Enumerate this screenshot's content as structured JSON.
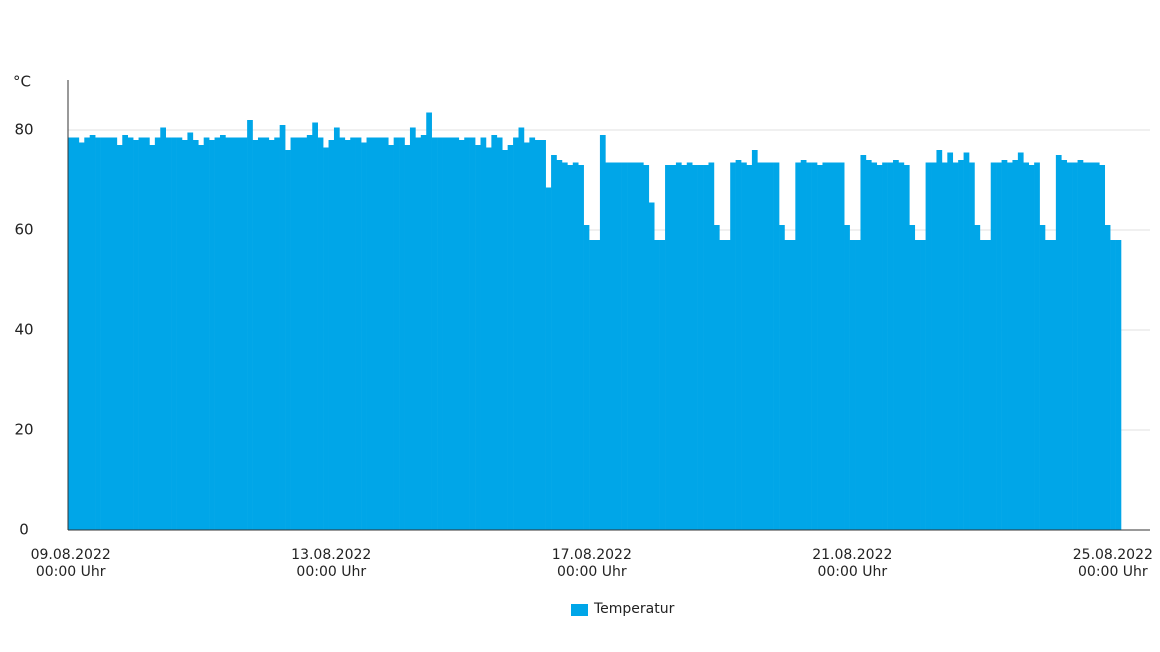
{
  "chart_data": {
    "type": "bar",
    "y_label": "°C",
    "ylim": [
      0,
      90
    ],
    "yticks": [
      0,
      20,
      40,
      60,
      80
    ],
    "grid": true,
    "categories": [
      "09.08.2022 00:00 Uhr",
      null,
      null,
      null,
      null,
      null,
      null,
      null,
      null,
      null,
      null,
      null,
      null,
      null,
      null,
      null,
      null,
      null,
      null,
      null,
      null,
      null,
      null,
      null,
      null,
      null,
      null,
      null,
      null,
      null,
      null,
      null,
      null,
      null,
      null,
      null,
      null,
      null,
      null,
      null,
      null,
      null,
      null,
      null,
      null,
      null,
      null,
      null,
      "13.08.2022 00:00 Uhr",
      null,
      null,
      null,
      null,
      null,
      null,
      null,
      null,
      null,
      null,
      null,
      null,
      null,
      null,
      null,
      null,
      null,
      null,
      null,
      null,
      null,
      null,
      null,
      null,
      null,
      null,
      null,
      null,
      null,
      null,
      null,
      null,
      null,
      null,
      null,
      null,
      null,
      null,
      null,
      null,
      null,
      null,
      null,
      null,
      null,
      null,
      null,
      "17.08.2022 00:00 Uhr",
      null,
      null,
      null,
      null,
      null,
      null,
      null,
      null,
      null,
      null,
      null,
      null,
      null,
      null,
      null,
      null,
      null,
      null,
      null,
      null,
      null,
      null,
      null,
      null,
      null,
      null,
      null,
      null,
      null,
      null,
      null,
      null,
      null,
      null,
      null,
      null,
      null,
      null,
      null,
      null,
      null,
      null,
      null,
      null,
      null,
      null,
      null,
      "21.08.2022 00:00 Uhr",
      null,
      null,
      null,
      null,
      null,
      null,
      null,
      null,
      null,
      null,
      null,
      null,
      null,
      null,
      null,
      null,
      null,
      null,
      null,
      null,
      null,
      null,
      null,
      null,
      null,
      null,
      null,
      null,
      null,
      null,
      null,
      null,
      null,
      null,
      null,
      null,
      null,
      null,
      null,
      null,
      null,
      null,
      null,
      null,
      null,
      null,
      null,
      "25.08.2022 00:00 Uhr",
      null
    ],
    "series": [
      {
        "name": "Temperatur",
        "color": "#00a6e8",
        "values": [
          78.5,
          78.5,
          77.5,
          78.5,
          79,
          78.5,
          78.5,
          78.5,
          78.5,
          77,
          79,
          78.5,
          78,
          78.5,
          78.5,
          77,
          78.5,
          80.5,
          78.5,
          78.5,
          78.5,
          78,
          79.5,
          78,
          77,
          78.5,
          78,
          78.5,
          79,
          78.5,
          78.5,
          78.5,
          78.5,
          82,
          78,
          78.5,
          78.5,
          78,
          78.5,
          81,
          76,
          78.5,
          78.5,
          78.5,
          79,
          81.5,
          78.5,
          76.5,
          78,
          80.5,
          78.5,
          78,
          78.5,
          78.5,
          77.5,
          78.5,
          78.5,
          78.5,
          78.5,
          77,
          78.5,
          78.5,
          77,
          80.5,
          78.5,
          79,
          83.5,
          78.5,
          78.5,
          78.5,
          78.5,
          78.5,
          78,
          78.5,
          78.5,
          77,
          78.5,
          76.5,
          79,
          78.5,
          76,
          77,
          78.5,
          80.5,
          77.5,
          78.5,
          78,
          78,
          68.5,
          75,
          74,
          73.5,
          73,
          73.5,
          73,
          61,
          58,
          58,
          79,
          73.5,
          73.5,
          73.5,
          73.5,
          73.5,
          73.5,
          73.5,
          73,
          65.5,
          58,
          58,
          73,
          73,
          73.5,
          73,
          73.5,
          73,
          73,
          73,
          73.5,
          61,
          58,
          58,
          73.5,
          74,
          73.5,
          73,
          76,
          73.5,
          73.5,
          73.5,
          73.5,
          61,
          58,
          58,
          73.5,
          74,
          73.5,
          73.5,
          73,
          73.5,
          73.5,
          73.5,
          73.5,
          61,
          58,
          58,
          75,
          74,
          73.5,
          73,
          73.5,
          73.5,
          74,
          73.5,
          73,
          61,
          58,
          58,
          73.5,
          73.5,
          76,
          73.5,
          75.5,
          73.5,
          74,
          75.5,
          73.5,
          61,
          58,
          58,
          73.5,
          73.5,
          74,
          73.5,
          74,
          75.5,
          73.5,
          73,
          73.5,
          61,
          58,
          58,
          75,
          74,
          73.5,
          73.5,
          74,
          73.5,
          73.5,
          73.5,
          73,
          61,
          58,
          58
        ]
      }
    ]
  }
}
